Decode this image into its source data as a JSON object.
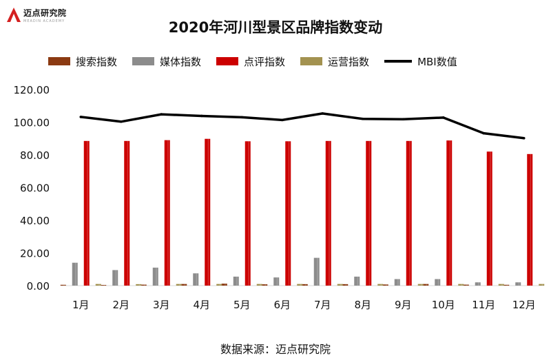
{
  "logo": {
    "name": "迈点研究院",
    "tagline": "MEADIN ACADEMY"
  },
  "chart_data": {
    "type": "bar",
    "title": "2020年河川型景区品牌指数变动",
    "categories": [
      "1月",
      "2月",
      "3月",
      "4月",
      "5月",
      "6月",
      "7月",
      "8月",
      "9月",
      "10月",
      "11月",
      "12月"
    ],
    "series": [
      {
        "name": "搜索指数",
        "kind": "bar",
        "color": "#8B3A12",
        "values": [
          0.5,
          0.4,
          0.6,
          1.0,
          1.2,
          0.8,
          0.9,
          0.9,
          0.7,
          1.0,
          0.6,
          0.5
        ]
      },
      {
        "name": "媒体指数",
        "kind": "bar",
        "color": "#8C8C8C",
        "values": [
          14.0,
          9.5,
          11.0,
          7.5,
          5.5,
          5.0,
          17.0,
          5.5,
          4.0,
          4.0,
          2.0,
          2.0
        ]
      },
      {
        "name": "点评指数",
        "kind": "bar",
        "color": "#CC0000",
        "values": [
          88.5,
          88.5,
          89.0,
          89.8,
          88.3,
          88.3,
          88.5,
          88.5,
          88.5,
          88.8,
          82.0,
          80.5
        ]
      },
      {
        "name": "运营指数",
        "kind": "bar",
        "color": "#A39250",
        "values": [
          1.0,
          0.9,
          1.0,
          1.0,
          1.0,
          1.0,
          1.0,
          1.0,
          1.0,
          1.0,
          1.0,
          1.0
        ]
      },
      {
        "name": "MBI数值",
        "kind": "line",
        "color": "#000000",
        "values": [
          103.2,
          100.3,
          104.8,
          103.8,
          103.0,
          101.3,
          105.3,
          102.0,
          101.8,
          102.8,
          93.2,
          90.2
        ]
      }
    ],
    "ylim": [
      0,
      120
    ],
    "yticks": [
      "0.00",
      "20.00",
      "40.00",
      "60.00",
      "80.00",
      "100.00",
      "120.00"
    ],
    "ytick_values": [
      0,
      20,
      40,
      60,
      80,
      100,
      120
    ],
    "grid": false,
    "legend": "top",
    "source": "数据来源：迈点研究院"
  }
}
